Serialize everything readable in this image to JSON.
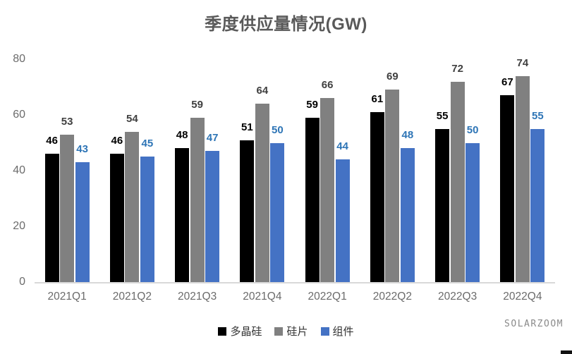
{
  "watermark": "SOLARZOOM",
  "chart_data": {
    "type": "bar",
    "title": "季度供应量情况(GW)",
    "xlabel": "",
    "ylabel": "",
    "categories": [
      "2021Q1",
      "2021Q2",
      "2021Q3",
      "2021Q4",
      "2022Q1",
      "2022Q2",
      "2022Q3",
      "2022Q4"
    ],
    "series": [
      {
        "name": "多晶硅",
        "color": "#000000",
        "label_color": "#000000",
        "values": [
          46,
          46,
          48,
          51,
          59,
          61,
          55,
          67
        ]
      },
      {
        "name": "硅片",
        "color": "#808080",
        "label_color": "#404040",
        "values": [
          53,
          54,
          59,
          64,
          66,
          69,
          72,
          74
        ]
      },
      {
        "name": "组件",
        "color": "#4472C4",
        "label_color": "#2E75B6",
        "values": [
          43,
          45,
          47,
          50,
          44,
          48,
          50,
          55
        ]
      }
    ],
    "ylim": [
      0,
      80
    ],
    "yticks": [
      0,
      20,
      40,
      60,
      80
    ],
    "grid": false,
    "data_labels": true,
    "legend_position": "bottom",
    "axis_line_color": "#d9d9d9"
  }
}
